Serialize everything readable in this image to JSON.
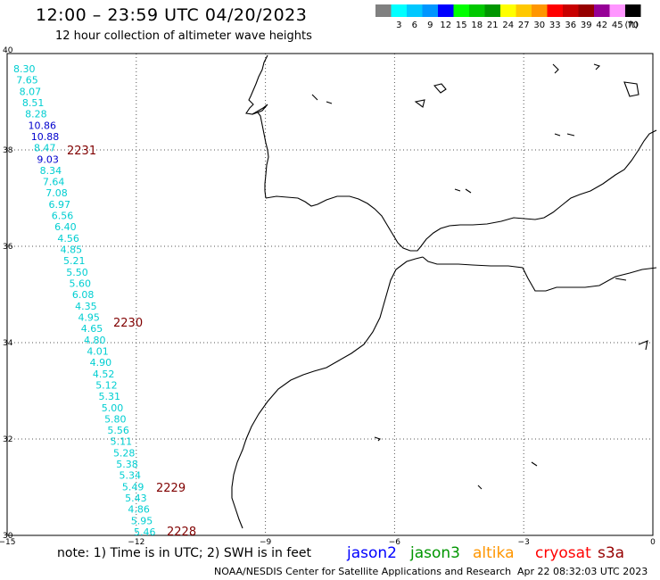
{
  "header": {
    "title": "12:00 – 23:59 UTC 04/20/2023",
    "subtitle": "12 hour collection of altimeter wave heights"
  },
  "legend": {
    "unit": "(ft)",
    "bins": [
      {
        "label": "",
        "color": "#808080"
      },
      {
        "label": "3",
        "color": "#00ffff"
      },
      {
        "label": "6",
        "color": "#00c8ff"
      },
      {
        "label": "9",
        "color": "#0096ff"
      },
      {
        "label": "12",
        "color": "#0000ff"
      },
      {
        "label": "15",
        "color": "#00ff00"
      },
      {
        "label": "18",
        "color": "#00c800"
      },
      {
        "label": "21",
        "color": "#009600"
      },
      {
        "label": "24",
        "color": "#ffff00"
      },
      {
        "label": "27",
        "color": "#ffc800"
      },
      {
        "label": "30",
        "color": "#ff9600"
      },
      {
        "label": "33",
        "color": "#ff0000"
      },
      {
        "label": "36",
        "color": "#c80000"
      },
      {
        "label": "39",
        "color": "#960000"
      },
      {
        "label": "42",
        "color": "#960096"
      },
      {
        "label": "45",
        "color": "#ff96ff"
      },
      {
        "label": "70",
        "color": "#000000"
      }
    ]
  },
  "map": {
    "lon_range": [
      -15,
      0
    ],
    "lat_range": [
      30,
      40
    ],
    "x_ticks": [
      "−15",
      "−12",
      "−9",
      "−6",
      "−3",
      "0"
    ],
    "y_ticks": [
      "40",
      "38",
      "36",
      "34",
      "32",
      "30"
    ],
    "track_color": "#00ced1",
    "blue_color": "#0000cd",
    "time_color": "#800000",
    "track": [
      {
        "value": "8.30",
        "blue": false
      },
      {
        "value": "7.65",
        "blue": false
      },
      {
        "value": "8.07",
        "blue": false
      },
      {
        "value": "8.51",
        "blue": false
      },
      {
        "value": "8.28",
        "blue": false
      },
      {
        "value": "10.86",
        "blue": true
      },
      {
        "value": "10.88",
        "blue": true
      },
      {
        "value": "8.47",
        "blue": false
      },
      {
        "value": "9.03",
        "blue": true
      },
      {
        "value": "8.34",
        "blue": false
      },
      {
        "value": "7.64",
        "blue": false
      },
      {
        "value": "7.08",
        "blue": false
      },
      {
        "value": "6.97",
        "blue": false
      },
      {
        "value": "6.56",
        "blue": false
      },
      {
        "value": "6.40",
        "blue": false
      },
      {
        "value": "4.56",
        "blue": false
      },
      {
        "value": "4.85",
        "blue": false
      },
      {
        "value": "5.21",
        "blue": false
      },
      {
        "value": "5.50",
        "blue": false
      },
      {
        "value": "5.60",
        "blue": false
      },
      {
        "value": "6.08",
        "blue": false
      },
      {
        "value": "4.35",
        "blue": false
      },
      {
        "value": "4.95",
        "blue": false
      },
      {
        "value": "4.65",
        "blue": false
      },
      {
        "value": "4.80",
        "blue": false
      },
      {
        "value": "4.01",
        "blue": false
      },
      {
        "value": "4.90",
        "blue": false
      },
      {
        "value": "4.52",
        "blue": false
      },
      {
        "value": "5.12",
        "blue": false
      },
      {
        "value": "5.31",
        "blue": false
      },
      {
        "value": "5.00",
        "blue": false
      },
      {
        "value": "5.80",
        "blue": false
      },
      {
        "value": "5.56",
        "blue": false
      },
      {
        "value": "5.11",
        "blue": false
      },
      {
        "value": "5.28",
        "blue": false
      },
      {
        "value": "5.38",
        "blue": false
      },
      {
        "value": "5.34",
        "blue": false
      },
      {
        "value": "5.49",
        "blue": false
      },
      {
        "value": "5.43",
        "blue": false
      },
      {
        "value": "4.86",
        "blue": false
      },
      {
        "value": "5.95",
        "blue": false
      },
      {
        "value": "5.46",
        "blue": false
      }
    ],
    "time_marks": [
      "2231",
      "2230",
      "2229",
      "2228"
    ]
  },
  "footer": {
    "note": "note:  1) Time is in UTC;  2) SWH is in feet",
    "satellites": [
      {
        "name": "jason2",
        "color": "#0000ff"
      },
      {
        "name": "jason3",
        "color": "#009600"
      },
      {
        "name": "altika",
        "color": "#ff9600"
      },
      {
        "name": "cryosat",
        "color": "#ff0000"
      },
      {
        "name": "s3a",
        "color": "#960000"
      }
    ],
    "credit": "NOAA/NESDIS Center for Satellite Applications and Research",
    "timestamp": "Apr 22 08:32:03 UTC 2023"
  }
}
